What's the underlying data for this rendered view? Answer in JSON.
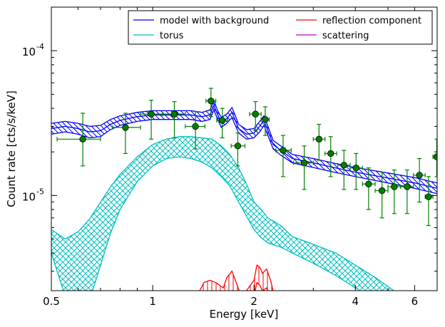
{
  "chart_data": {
    "type": "line",
    "xlabel": "Energy [keV]",
    "ylabel": "Count rate [cts/s/keV]",
    "x_scale": "log",
    "y_scale": "log",
    "xlim": [
      0.5,
      7.0
    ],
    "ylim": [
      2.2e-06,
      0.0002
    ],
    "x_ticks": [
      {
        "value": 0.5,
        "label": "0.5"
      },
      {
        "value": 1,
        "label": "1"
      },
      {
        "value": 2,
        "label": "2"
      },
      {
        "value": 4,
        "label": "4"
      },
      {
        "value": 6,
        "label": "6"
      }
    ],
    "y_ticks": [
      {
        "value": 1e-05,
        "label": "10",
        "exp": "-5"
      },
      {
        "value": 0.0001,
        "label": "10",
        "exp": "-4"
      }
    ],
    "legend": {
      "placement": "top-right",
      "entries": [
        {
          "label": "model with background",
          "color": "#0000ff"
        },
        {
          "label": "reflection component",
          "color": "#ff0000"
        },
        {
          "label": "torus",
          "color": "#00bfbf"
        },
        {
          "label": "scattering",
          "color": "#bf00bf"
        }
      ]
    },
    "series": [
      {
        "name": "model with background",
        "color": "#0000ff",
        "x": [
          0.5,
          0.55,
          0.6,
          0.65,
          0.7,
          0.75,
          0.8,
          0.9,
          1.0,
          1.1,
          1.2,
          1.3,
          1.4,
          1.48,
          1.52,
          1.56,
          1.6,
          1.66,
          1.72,
          1.76,
          1.8,
          1.9,
          2.0,
          2.08,
          2.14,
          2.2,
          2.28,
          2.4,
          2.6,
          3.0,
          3.5,
          4.0,
          5.0,
          6.0,
          7.0
        ],
        "y": [
          2.9e-05,
          3e-05,
          2.9e-05,
          2.75e-05,
          2.8e-05,
          3.1e-05,
          3.3e-05,
          3.5e-05,
          3.6e-05,
          3.6e-05,
          3.6e-05,
          3.6e-05,
          3.5e-05,
          3.6e-05,
          4.2e-05,
          3.6e-05,
          3.2e-05,
          3.4e-05,
          3.75e-05,
          3.3e-05,
          2.9e-05,
          2.65e-05,
          2.7e-05,
          3e-05,
          3.3e-05,
          2.8e-05,
          2.25e-05,
          2.05e-05,
          1.8e-05,
          1.68e-05,
          1.55e-05,
          1.45e-05,
          1.32e-05,
          1.22e-05,
          1.12e-05
        ],
        "band_upper": [
          3.15e-05,
          3.25e-05,
          3.15e-05,
          3e-05,
          3.05e-05,
          3.35e-05,
          3.55e-05,
          3.75e-05,
          3.85e-05,
          3.85e-05,
          3.85e-05,
          3.85e-05,
          3.75e-05,
          3.9e-05,
          4.5e-05,
          3.85e-05,
          3.45e-05,
          3.65e-05,
          4.05e-05,
          3.55e-05,
          3.1e-05,
          2.85e-05,
          2.9e-05,
          3.25e-05,
          3.55e-05,
          3e-05,
          2.4e-05,
          2.2e-05,
          1.92e-05,
          1.8e-05,
          1.66e-05,
          1.56e-05,
          1.43e-05,
          1.33e-05,
          1.22e-05
        ],
        "band_lower": [
          2.65e-05,
          2.75e-05,
          2.65e-05,
          2.5e-05,
          2.55e-05,
          2.85e-05,
          3.05e-05,
          3.25e-05,
          3.35e-05,
          3.35e-05,
          3.35e-05,
          3.35e-05,
          3.25e-05,
          3.35e-05,
          3.9e-05,
          3.35e-05,
          2.95e-05,
          3.15e-05,
          3.45e-05,
          3.05e-05,
          2.7e-05,
          2.45e-05,
          2.5e-05,
          2.75e-05,
          3.05e-05,
          2.6e-05,
          2.1e-05,
          1.9e-05,
          1.68e-05,
          1.56e-05,
          1.44e-05,
          1.35e-05,
          1.22e-05,
          1.12e-05,
          1.03e-05
        ]
      },
      {
        "name": "torus",
        "color": "#00bfbf",
        "x": [
          0.5,
          0.55,
          0.6,
          0.65,
          0.7,
          0.75,
          0.8,
          0.9,
          1.0,
          1.1,
          1.2,
          1.3,
          1.4,
          1.5,
          1.6,
          1.7,
          1.8,
          1.9,
          2.0,
          2.1,
          2.2,
          2.4,
          2.6,
          3.0,
          3.5,
          4.0,
          4.6,
          5.2
        ],
        "band_upper": [
          5.8e-06,
          5e-06,
          5.6e-06,
          6.9e-06,
          9e-06,
          1.15e-05,
          1.4e-05,
          1.85e-05,
          2.25e-05,
          2.45e-05,
          2.55e-05,
          2.55e-05,
          2.5e-05,
          2.45e-05,
          2.2e-05,
          1.9e-05,
          1.55e-05,
          1.2e-05,
          9e-06,
          8e-06,
          7e-06,
          6.2e-06,
          5.2e-06,
          4.6e-06,
          4e-06,
          3.3e-06,
          2.7e-06,
          2.2e-06
        ],
        "band_lower": [
          4e-06,
          2e-06,
          1.5e-06,
          1.9e-06,
          3.3e-06,
          5.5e-06,
          8e-06,
          1.25e-05,
          1.6e-05,
          1.8e-05,
          1.85e-05,
          1.8e-05,
          1.7e-05,
          1.55e-05,
          1.35e-05,
          1.15e-05,
          9e-06,
          7.2e-06,
          5.8e-06,
          5.1e-06,
          4.7e-06,
          4.4e-06,
          4e-06,
          3.4e-06,
          2.8e-06,
          2.3e-06,
          1.9e-06,
          1.6e-06
        ]
      },
      {
        "name": "reflection component",
        "color": "#ff0000",
        "x": [
          1.35,
          1.42,
          1.48,
          1.54,
          1.62,
          1.66,
          1.72,
          1.76,
          1.82,
          1.9,
          2.0,
          2.04,
          2.08,
          2.12,
          2.18,
          2.24,
          2.3
        ],
        "band_upper": [
          2e-06,
          2.5e-06,
          2.6e-06,
          2.5e-06,
          2.3e-06,
          2.7e-06,
          3e-06,
          2.6e-06,
          2.1e-06,
          2.2e-06,
          2.6e-06,
          3.3e-06,
          3.2e-06,
          2.9e-06,
          3.1e-06,
          2.6e-06,
          2e-06
        ],
        "band_lower": [
          1.5e-06,
          1.8e-06,
          1.9e-06,
          1.8e-06,
          1.7e-06,
          2e-06,
          2.2e-06,
          1.9e-06,
          1.6e-06,
          1.7e-06,
          2e-06,
          2.5e-06,
          2.4e-06,
          2.2e-06,
          2.3e-06,
          1.9e-06,
          1.5e-06
        ]
      }
    ],
    "data_points": [
      {
        "x": 0.62,
        "y": 2.45e-05,
        "xerr": [
          0.52,
          0.7
        ],
        "yerr": [
          1.6e-05,
          3.7e-05
        ]
      },
      {
        "x": 0.83,
        "y": 2.95e-05,
        "xerr": [
          0.76,
          0.92
        ],
        "yerr": [
          1.95e-05,
          3.7e-05
        ]
      },
      {
        "x": 0.99,
        "y": 3.65e-05,
        "xerr": [
          0.92,
          1.07
        ],
        "yerr": [
          2.45e-05,
          4.55e-05
        ]
      },
      {
        "x": 1.16,
        "y": 3.65e-05,
        "xerr": [
          1.07,
          1.25
        ],
        "yerr": [
          2.5e-05,
          4.45e-05
        ]
      },
      {
        "x": 1.34,
        "y": 3e-05,
        "xerr": [
          1.25,
          1.43
        ],
        "yerr": [
          2.1e-05,
          3.8e-05
        ]
      },
      {
        "x": 1.49,
        "y": 4.5e-05,
        "xerr": [
          1.44,
          1.54
        ],
        "yerr": [
          3.5e-05,
          5.5e-05
        ]
      },
      {
        "x": 1.61,
        "y": 3.3e-05,
        "xerr": [
          1.55,
          1.67
        ],
        "yerr": [
          2.5e-05,
          4e-05
        ]
      },
      {
        "x": 1.79,
        "y": 2.2e-05,
        "xerr": [
          1.71,
          1.88
        ],
        "yerr": [
          1.6e-05,
          2.7e-05
        ]
      },
      {
        "x": 2.02,
        "y": 3.65e-05,
        "xerr": [
          1.94,
          2.1
        ],
        "yerr": [
          2.8e-05,
          4.45e-05
        ]
      },
      {
        "x": 2.16,
        "y": 3.35e-05,
        "xerr": [
          2.1,
          2.22
        ],
        "yerr": [
          2.6e-05,
          4.1e-05
        ]
      },
      {
        "x": 2.44,
        "y": 2.05e-05,
        "xerr": [
          2.32,
          2.58
        ],
        "yerr": [
          1.35e-05,
          2.6e-05
        ]
      },
      {
        "x": 2.82,
        "y": 1.68e-05,
        "xerr": [
          2.62,
          3.0
        ],
        "yerr": [
          1.1e-05,
          2.2e-05
        ]
      },
      {
        "x": 3.12,
        "y": 2.45e-05,
        "xerr": [
          3.0,
          3.25
        ],
        "yerr": [
          1.75e-05,
          3.1e-05
        ]
      },
      {
        "x": 3.38,
        "y": 1.95e-05,
        "xerr": [
          3.25,
          3.52
        ],
        "yerr": [
          1.35e-05,
          2.55e-05
        ]
      },
      {
        "x": 3.7,
        "y": 1.62e-05,
        "xerr": [
          3.55,
          3.86
        ],
        "yerr": [
          1.1e-05,
          2.05e-05
        ]
      },
      {
        "x": 4.02,
        "y": 1.55e-05,
        "xerr": [
          3.86,
          4.2
        ],
        "yerr": [
          1.1e-05,
          1.95e-05
        ]
      },
      {
        "x": 4.38,
        "y": 1.2e-05,
        "xerr": [
          4.2,
          4.58
        ],
        "yerr": [
          8e-06,
          1.55e-05
        ]
      },
      {
        "x": 4.8,
        "y": 1.08e-05,
        "xerr": [
          4.58,
          5.0
        ],
        "yerr": [
          7e-06,
          1.45e-05
        ]
      },
      {
        "x": 5.22,
        "y": 1.15e-05,
        "xerr": [
          5.0,
          5.45
        ],
        "yerr": [
          7.5e-06,
          1.5e-05
        ]
      },
      {
        "x": 5.7,
        "y": 1.15e-05,
        "xerr": [
          5.45,
          5.95
        ],
        "yerr": [
          7.5e-06,
          1.5e-05
        ]
      },
      {
        "x": 6.2,
        "y": 1.38e-05,
        "xerr": [
          5.95,
          6.45
        ],
        "yerr": [
          9e-06,
          1.8e-05
        ]
      },
      {
        "x": 6.6,
        "y": 9.8e-06,
        "xerr": [
          6.45,
          6.8
        ],
        "yerr": [
          6.2e-06,
          1.35e-05
        ]
      },
      {
        "x": 6.98,
        "y": 1.85e-05,
        "xerr": [
          6.8,
          7.0
        ],
        "yerr": [
          1.35e-05,
          2.45e-05
        ]
      }
    ],
    "data_point_color": "#008000"
  }
}
